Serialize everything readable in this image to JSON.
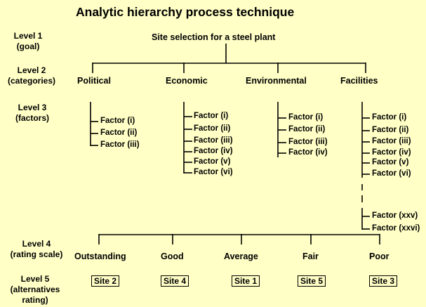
{
  "title": "Analytic hierarchy process technique",
  "levels": [
    {
      "name": "Level 1",
      "sub": "(goal)"
    },
    {
      "name": "Level 2",
      "sub": "(categories)"
    },
    {
      "name": "Level 3",
      "sub": "(factors)"
    },
    {
      "name": "Level 4",
      "sub": "(rating scale)"
    },
    {
      "name": "Level 5",
      "sub": "(alternatives",
      "sub2": "rating)"
    }
  ],
  "goal": "Site selection for a steel plant",
  "categories": [
    "Political",
    "Economic",
    "Environmental",
    "Facilities"
  ],
  "factors": {
    "political": [
      "Factor (i)",
      "Factor (ii)",
      "Factor (iii)"
    ],
    "economic": [
      "Factor (i)",
      "Factor (ii)",
      "Factor (iii)",
      "Factor (iv)",
      "Factor (v)",
      "Factor (vi)"
    ],
    "environmental": [
      "Factor (i)",
      "Factor (ii)",
      "Factor (iii)",
      "Factor (iv)"
    ],
    "facilities": [
      "Factor (i)",
      "Factor (ii)",
      "Factor (iii)",
      "Factor (iv)",
      "Factor (v)",
      "Factor (vi)",
      "Factor (xxv)",
      "Factor (xxvi)"
    ]
  },
  "ratings": [
    "Outstanding",
    "Good",
    "Average",
    "Fair",
    "Poor"
  ],
  "sites": [
    "Site 2",
    "Site 4",
    "Site 1",
    "Site 5",
    "Site 3"
  ]
}
